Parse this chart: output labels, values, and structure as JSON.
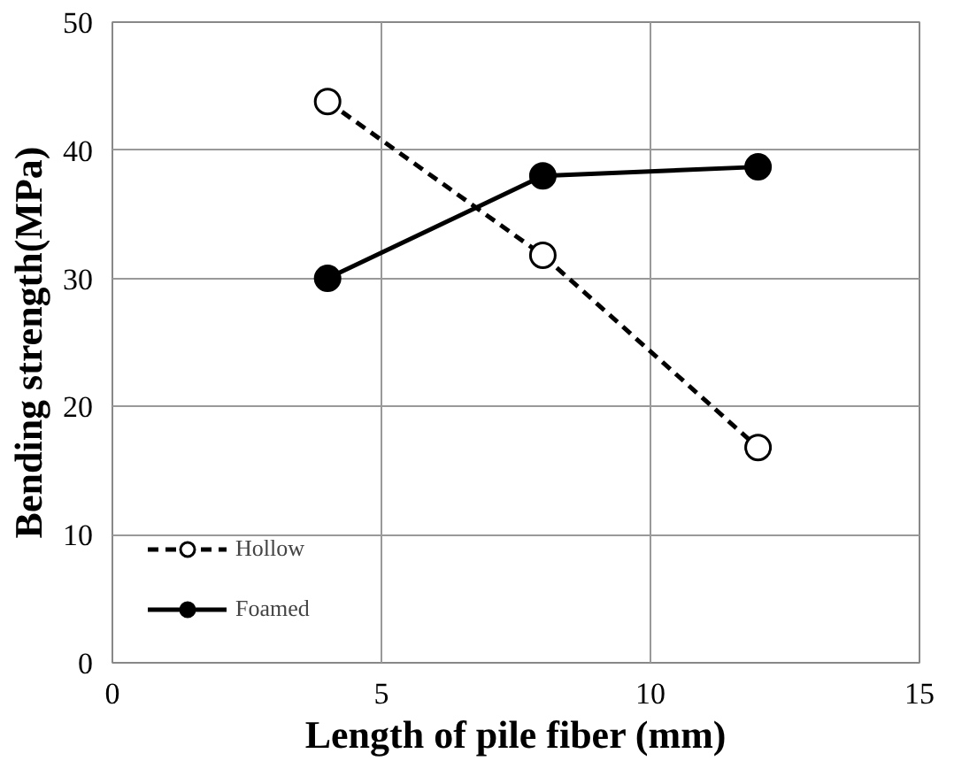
{
  "chart_data": {
    "type": "line",
    "xlabel": "Length of pile fiber (mm)",
    "ylabel": "Bending strength(MPa)",
    "x": [
      4,
      8,
      12
    ],
    "series": [
      {
        "name": "Hollow",
        "color": "#000000",
        "marker": "circle",
        "line_style": "dashed",
        "values": [
          43.8,
          31.8,
          16.8
        ]
      },
      {
        "name": "Foamed",
        "color": "#000000",
        "marker": "circle",
        "line_style": "solid",
        "values": [
          30,
          38,
          38.7
        ]
      }
    ],
    "xlim": [
      0,
      15
    ],
    "xticks": [
      0,
      5,
      10,
      15
    ],
    "ylim": [
      0,
      50
    ],
    "yticks": [
      0,
      10,
      20,
      30,
      40,
      50
    ],
    "grid": true,
    "legend": "bottom left"
  }
}
